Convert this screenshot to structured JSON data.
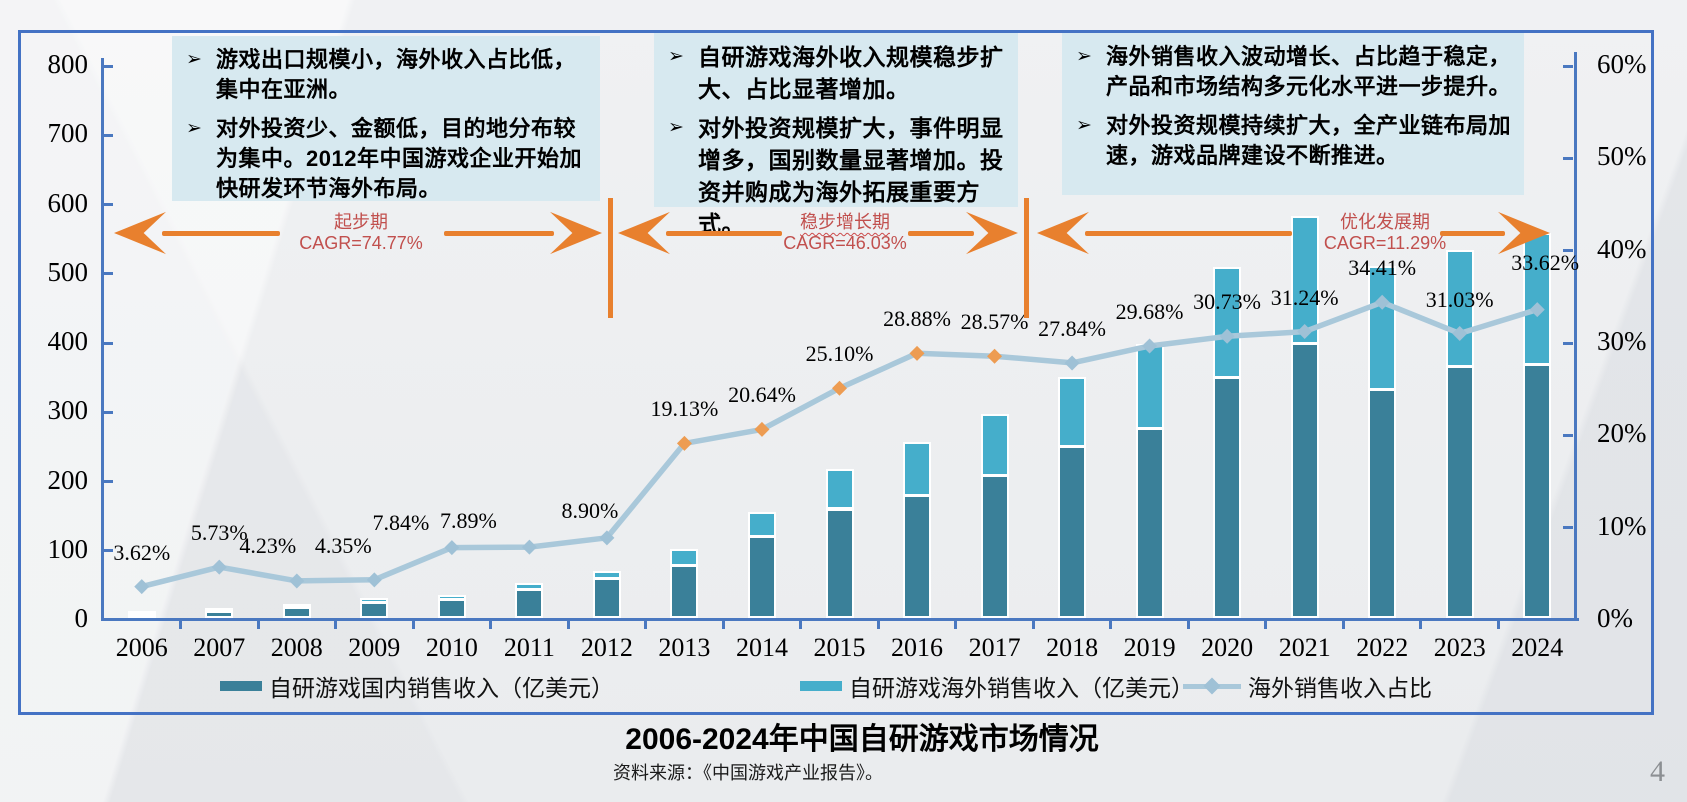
{
  "slide": {
    "title": "2006-2024年中国自研游戏市场情况",
    "source": "资料来源：《中国游戏产业报告》。",
    "page_number": "4"
  },
  "bullet_glyph": "➢",
  "annotation_boxes": [
    {
      "bullets": [
        "游戏出口规模小，海外收入占比低，集中在亚洲。",
        "对外投资少、金额低，目的地分布较为集中。2012年中国游戏企业开始加快研发环节海外布局。"
      ]
    },
    {
      "bullets": [
        "自研游戏海外收入规模稳步扩大、占比显著增加。",
        "对外投资规模扩大，事件明显增多，国别数量显著增加。投资并购成为海外拓展重要方式。"
      ]
    },
    {
      "bullets": [
        "海外销售收入波动增长、占比趋于稳定，产品和市场结构多元化水平进一步提升。",
        "对外投资规模持续扩大，全产业链布局加速，游戏品牌建设不断推进。"
      ]
    }
  ],
  "periods": [
    {
      "name": "起步期",
      "cagr": "CAGR=74.77%"
    },
    {
      "name": "稳步增长期",
      "cagr": "CAGR=46.03%"
    },
    {
      "name": "优化发展期",
      "cagr": "CAGR=11.29%"
    }
  ],
  "chart_data": {
    "type": "bar",
    "subtype": "stacked bars with right-axis line (combo)",
    "title": "2006-2024年中国自研游戏市场情况",
    "categories": [
      "2006",
      "2007",
      "2008",
      "2009",
      "2010",
      "2011",
      "2012",
      "2013",
      "2014",
      "2015",
      "2016",
      "2017",
      "2018",
      "2019",
      "2020",
      "2021",
      "2022",
      "2023",
      "2024"
    ],
    "series": [
      {
        "name": "自研游戏国内销售收入（亿美元）",
        "type": "bar",
        "stack": true,
        "color": "#3A8099",
        "values": [
          5.3,
          9.9,
          15.8,
          23.1,
          27.0,
          42.0,
          58.3,
          76.9,
          118.0,
          158.1,
          178.1,
          207.0,
          248.4,
          274.8,
          348.3,
          396.5,
          330.6,
          363.7,
          366.5
        ]
      },
      {
        "name": "自研游戏海外销售收入（亿美元）",
        "type": "bar",
        "stack": true,
        "color": "#45AECB",
        "values": [
          0.2,
          0.6,
          0.7,
          1.05,
          2.3,
          3.6,
          5.7,
          18.2,
          30.8,
          53.1,
          72.3,
          82.8,
          95.9,
          115.9,
          154.5,
          180.1,
          173.5,
          163.7,
          185.6
        ]
      },
      {
        "name": "海外销售收入占比",
        "type": "line",
        "axis": "right",
        "color": "#A9C8DA",
        "marker_color": "#9FC1D6",
        "highlight_marker_color": "#ED9C52",
        "highlight_years": [
          "2013",
          "2014",
          "2015",
          "2016",
          "2017"
        ],
        "values": [
          3.62,
          5.73,
          4.23,
          4.35,
          7.84,
          7.89,
          8.9,
          19.13,
          20.64,
          25.1,
          28.88,
          28.57,
          27.84,
          29.68,
          30.73,
          31.24,
          34.41,
          31.03,
          33.62
        ],
        "labels": [
          "3.62%",
          "5.73%",
          "4.23%",
          "4.35%",
          "7.84%",
          "7.89%",
          "8.90%",
          "19.13%",
          "20.64%",
          "25.10%",
          "28.88%",
          "28.57%",
          "27.84%",
          "29.68%",
          "30.73%",
          "31.24%",
          "34.41%",
          "31.03%",
          "33.62%"
        ]
      }
    ],
    "left_axis": {
      "min": 0,
      "max": 800,
      "step": 100
    },
    "right_axis": {
      "min": 0,
      "max": 60,
      "step": 10,
      "suffix": "%"
    },
    "legend_position": "bottom",
    "grid": false
  }
}
